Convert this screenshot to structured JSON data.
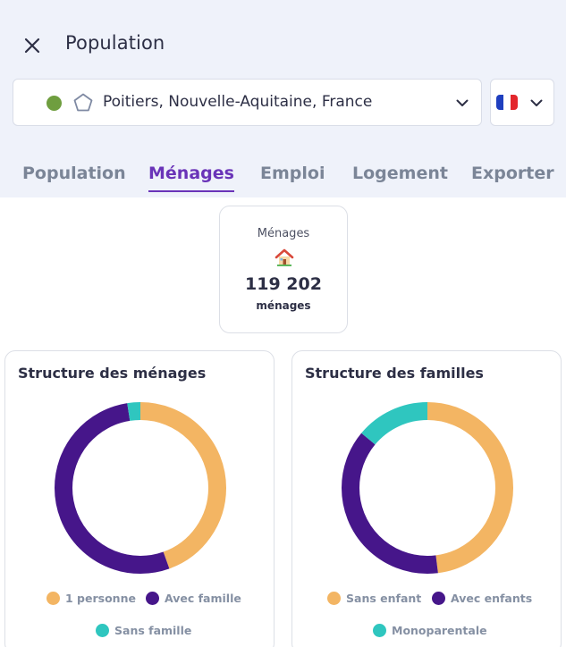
{
  "header": {
    "title": "Population"
  },
  "location": {
    "text": "Poitiers, Nouvelle-Aquitaine, France",
    "status_color": "#6f9e3f"
  },
  "language": {
    "flag_colors": [
      "#1f3fbf",
      "#ffffff",
      "#e3262c"
    ]
  },
  "tabs": [
    {
      "label": "Population",
      "active": false
    },
    {
      "label": "Ménages",
      "active": true
    },
    {
      "label": "Emploi",
      "active": false
    },
    {
      "label": "Logement",
      "active": false
    },
    {
      "label": "Exporter",
      "active": false
    }
  ],
  "kpi": {
    "label": "Ménages",
    "value": "119 202",
    "unit": "ménages",
    "icon": "house-icon"
  },
  "colors": {
    "orange": "#f3b563",
    "purple": "#46168a",
    "teal": "#2fc6bf"
  },
  "chart_data": [
    {
      "type": "pie",
      "title": "Structure des ménages",
      "categories": [
        "1 personne",
        "Avec famille",
        "Sans famille"
      ],
      "values": [
        44.5,
        53,
        2.5
      ],
      "colors": [
        "#f3b563",
        "#46168a",
        "#2fc6bf"
      ],
      "legend": "bottom"
    },
    {
      "type": "pie",
      "title": "Structure des familles",
      "categories": [
        "Sans enfant",
        "Avec enfants",
        "Monoparentale"
      ],
      "values": [
        48,
        38,
        14
      ],
      "colors": [
        "#f3b563",
        "#46168a",
        "#2fc6bf"
      ],
      "legend": "bottom"
    }
  ]
}
